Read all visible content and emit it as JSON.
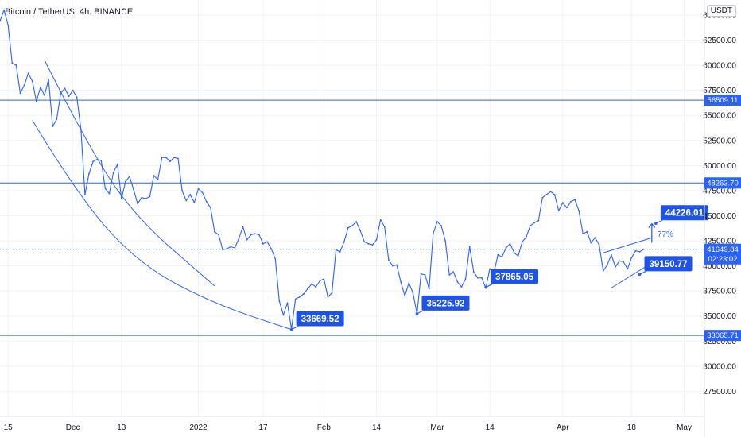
{
  "header": {
    "title": "Bitcoin / TetherUS, 4h, BINANCE",
    "currency": "USDT"
  },
  "colors": {
    "accent": "#2962ff",
    "tag_dark": "#1e53e5",
    "axis_text": "#131722",
    "grid": "#f0f3fa"
  },
  "chart_data": {
    "type": "line",
    "title": "Bitcoin / TetherUS, 4h, BINANCE",
    "xlabel": "",
    "ylabel": "",
    "ylim": [
      25000,
      66500
    ],
    "xlim": [
      "2021-11-13",
      "2022-05-06"
    ],
    "grid": true,
    "y_ticks": [
      "27500.00",
      "30000.00",
      "32500.00",
      "35000.00",
      "37500.00",
      "40000.00",
      "42500.00",
      "45000.00",
      "47500.00",
      "50000.00",
      "52500.00",
      "55000.00",
      "57500.00",
      "60000.00",
      "62500.00",
      "65000.00"
    ],
    "x_ticks": [
      {
        "label": "15",
        "date": "2021-11-15"
      },
      {
        "label": "Dec",
        "date": "2021-12-01"
      },
      {
        "label": "13",
        "date": "2021-12-13"
      },
      {
        "label": "2022",
        "date": "2022-01-01"
      },
      {
        "label": "17",
        "date": "2022-01-17"
      },
      {
        "label": "Feb",
        "date": "2022-02-01"
      },
      {
        "label": "14",
        "date": "2022-02-14"
      },
      {
        "label": "Mar",
        "date": "2022-03-01"
      },
      {
        "label": "14",
        "date": "2022-03-14"
      },
      {
        "label": "Apr",
        "date": "2022-04-01"
      },
      {
        "label": "18",
        "date": "2022-04-18"
      },
      {
        "label": "May",
        "date": "2022-05-01"
      }
    ],
    "series": [
      {
        "values": [
          [
            "2021-11-13",
            64400
          ],
          [
            "2021-11-14",
            65500
          ],
          [
            "2021-11-15",
            64000
          ],
          [
            "2021-11-16",
            60200
          ],
          [
            "2021-11-17",
            60000
          ],
          [
            "2021-11-18",
            57200
          ],
          [
            "2021-11-19",
            58000
          ],
          [
            "2021-11-20",
            59200
          ],
          [
            "2021-11-21",
            58400
          ],
          [
            "2021-11-22",
            56400
          ],
          [
            "2021-11-23",
            57800
          ],
          [
            "2021-11-24",
            57000
          ],
          [
            "2021-11-25",
            58600
          ],
          [
            "2021-11-26",
            53900
          ],
          [
            "2021-11-27",
            54600
          ],
          [
            "2021-11-28",
            57200
          ],
          [
            "2021-11-29",
            57700
          ],
          [
            "2021-11-30",
            56900
          ],
          [
            "2021-12-01",
            57500
          ],
          [
            "2021-12-02",
            56800
          ],
          [
            "2021-12-03",
            53600
          ],
          [
            "2021-12-04",
            47100
          ],
          [
            "2021-12-05",
            49200
          ],
          [
            "2021-12-06",
            50400
          ],
          [
            "2021-12-07",
            50600
          ],
          [
            "2021-12-08",
            50500
          ],
          [
            "2021-12-09",
            47700
          ],
          [
            "2021-12-10",
            47200
          ],
          [
            "2021-12-11",
            49300
          ],
          [
            "2021-12-12",
            50100
          ],
          [
            "2021-12-13",
            46700
          ],
          [
            "2021-12-14",
            48400
          ],
          [
            "2021-12-15",
            48900
          ],
          [
            "2021-12-16",
            47600
          ],
          [
            "2021-12-17",
            46200
          ],
          [
            "2021-12-18",
            46800
          ],
          [
            "2021-12-19",
            46700
          ],
          [
            "2021-12-20",
            46900
          ],
          [
            "2021-12-21",
            49000
          ],
          [
            "2021-12-22",
            48600
          ],
          [
            "2021-12-23",
            50800
          ],
          [
            "2021-12-24",
            50800
          ],
          [
            "2021-12-25",
            50400
          ],
          [
            "2021-12-26",
            50800
          ],
          [
            "2021-12-27",
            50700
          ],
          [
            "2021-12-28",
            47500
          ],
          [
            "2021-12-29",
            46500
          ],
          [
            "2021-12-30",
            47100
          ],
          [
            "2021-12-31",
            46300
          ],
          [
            "2022-01-01",
            47700
          ],
          [
            "2022-01-02",
            47300
          ],
          [
            "2022-01-03",
            46400
          ],
          [
            "2022-01-04",
            45800
          ],
          [
            "2022-01-05",
            43400
          ],
          [
            "2022-01-06",
            43100
          ],
          [
            "2022-01-07",
            41600
          ],
          [
            "2022-01-08",
            41700
          ],
          [
            "2022-01-09",
            41900
          ],
          [
            "2022-01-10",
            41800
          ],
          [
            "2022-01-11",
            42700
          ],
          [
            "2022-01-12",
            43900
          ],
          [
            "2022-01-13",
            42600
          ],
          [
            "2022-01-14",
            43100
          ],
          [
            "2022-01-15",
            43200
          ],
          [
            "2022-01-16",
            43100
          ],
          [
            "2022-01-17",
            42200
          ],
          [
            "2022-01-18",
            42400
          ],
          [
            "2022-01-19",
            41700
          ],
          [
            "2022-01-20",
            40700
          ],
          [
            "2022-01-21",
            36500
          ],
          [
            "2022-01-22",
            35100
          ],
          [
            "2022-01-23",
            36300
          ],
          [
            "2022-01-24",
            33700
          ],
          [
            "2022-01-25",
            36700
          ],
          [
            "2022-01-26",
            36900
          ],
          [
            "2022-01-27",
            37200
          ],
          [
            "2022-01-28",
            37700
          ],
          [
            "2022-01-29",
            38200
          ],
          [
            "2022-01-30",
            37900
          ],
          [
            "2022-01-31",
            38500
          ],
          [
            "2022-02-01",
            38700
          ],
          [
            "2022-02-02",
            36900
          ],
          [
            "2022-02-03",
            37300
          ],
          [
            "2022-02-04",
            41600
          ],
          [
            "2022-02-05",
            41400
          ],
          [
            "2022-02-06",
            42400
          ],
          [
            "2022-02-07",
            43800
          ],
          [
            "2022-02-08",
            44000
          ],
          [
            "2022-02-09",
            44400
          ],
          [
            "2022-02-10",
            43500
          ],
          [
            "2022-02-11",
            42400
          ],
          [
            "2022-02-12",
            42200
          ],
          [
            "2022-02-13",
            42100
          ],
          [
            "2022-02-14",
            42600
          ],
          [
            "2022-02-15",
            44600
          ],
          [
            "2022-02-16",
            43900
          ],
          [
            "2022-02-17",
            40600
          ],
          [
            "2022-02-18",
            40000
          ],
          [
            "2022-02-19",
            40100
          ],
          [
            "2022-02-20",
            38400
          ],
          [
            "2022-02-21",
            37000
          ],
          [
            "2022-02-22",
            38300
          ],
          [
            "2022-02-23",
            37300
          ],
          [
            "2022-02-24",
            35200
          ],
          [
            "2022-02-25",
            39200
          ],
          [
            "2022-02-26",
            39100
          ],
          [
            "2022-02-27",
            37700
          ],
          [
            "2022-02-28",
            43200
          ],
          [
            "2022-03-01",
            44400
          ],
          [
            "2022-03-02",
            44000
          ],
          [
            "2022-03-03",
            42500
          ],
          [
            "2022-03-04",
            39100
          ],
          [
            "2022-03-05",
            39400
          ],
          [
            "2022-03-06",
            38400
          ],
          [
            "2022-03-07",
            37900
          ],
          [
            "2022-03-08",
            38700
          ],
          [
            "2022-03-09",
            41900
          ],
          [
            "2022-03-10",
            39400
          ],
          [
            "2022-03-11",
            38800
          ],
          [
            "2022-03-12",
            38800
          ],
          [
            "2022-03-13",
            37800
          ],
          [
            "2022-03-14",
            39700
          ],
          [
            "2022-03-15",
            39300
          ],
          [
            "2022-03-16",
            41100
          ],
          [
            "2022-03-17",
            40900
          ],
          [
            "2022-03-18",
            41800
          ],
          [
            "2022-03-19",
            42200
          ],
          [
            "2022-03-20",
            41300
          ],
          [
            "2022-03-21",
            41000
          ],
          [
            "2022-03-22",
            42400
          ],
          [
            "2022-03-23",
            42900
          ],
          [
            "2022-03-24",
            44000
          ],
          [
            "2022-03-25",
            44300
          ],
          [
            "2022-03-26",
            44500
          ],
          [
            "2022-03-27",
            46800
          ],
          [
            "2022-03-28",
            47100
          ],
          [
            "2022-03-29",
            47400
          ],
          [
            "2022-03-30",
            47100
          ],
          [
            "2022-03-31",
            45500
          ],
          [
            "2022-04-01",
            46300
          ],
          [
            "2022-04-02",
            45800
          ],
          [
            "2022-04-03",
            46400
          ],
          [
            "2022-04-04",
            46600
          ],
          [
            "2022-04-05",
            45500
          ],
          [
            "2022-04-06",
            43200
          ],
          [
            "2022-04-07",
            43400
          ],
          [
            "2022-04-08",
            42300
          ],
          [
            "2022-04-09",
            42800
          ],
          [
            "2022-04-10",
            42100
          ],
          [
            "2022-04-11",
            39500
          ],
          [
            "2022-04-12",
            40100
          ],
          [
            "2022-04-13",
            41100
          ],
          [
            "2022-04-14",
            39900
          ],
          [
            "2022-04-15",
            40500
          ],
          [
            "2022-04-16",
            40400
          ],
          [
            "2022-04-17",
            39700
          ],
          [
            "2022-04-18",
            40800
          ],
          [
            "2022-04-19",
            41500
          ],
          [
            "2022-04-20",
            41400
          ],
          [
            "2022-04-21",
            41650
          ]
        ]
      }
    ],
    "horizontal_levels": [
      {
        "value": 56509.11,
        "label": "56509.11"
      },
      {
        "value": 48263.7,
        "label": "48263.70"
      },
      {
        "value": 33065.71,
        "label": "33065.71"
      }
    ],
    "last_price": {
      "label": "41649.84",
      "countdown": "02:23:02",
      "value": 41649.84
    },
    "price_callouts": [
      {
        "label": "33669.52",
        "date": "2022-01-24",
        "value": 33669.52
      },
      {
        "label": "35225.92",
        "date": "2022-02-24",
        "value": 35225.92
      },
      {
        "label": "37865.05",
        "date": "2022-03-13",
        "value": 37865.05
      },
      {
        "label": "39150.77",
        "date": "2022-04-20",
        "value": 39150.77
      },
      {
        "label": "44226.01",
        "date": "2022-04-24",
        "value": 44226.01
      }
    ],
    "annotations": [
      {
        "text": "77%"
      }
    ]
  }
}
